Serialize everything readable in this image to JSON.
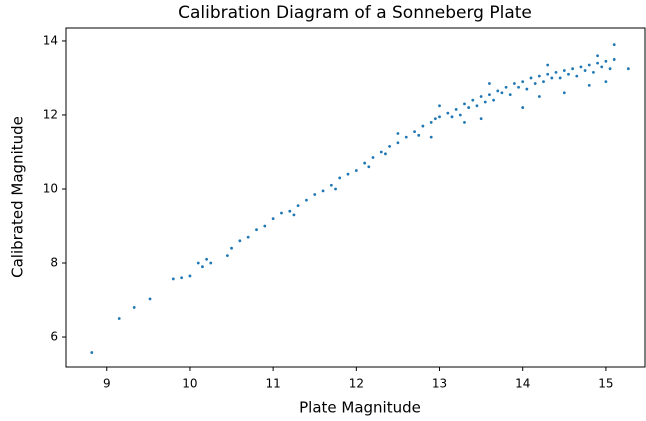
{
  "chart_data": {
    "type": "scatter",
    "title": "Calibration Diagram of a Sonneberg Plate",
    "x_label": "Plate Magnitude",
    "y_label": "Calibrated Magnitude",
    "color": "#1f77b4",
    "xlim": [
      8.51,
      15.47
    ],
    "xticks": [
      9,
      10,
      11,
      12,
      13,
      14,
      15
    ],
    "ylim": [
      5.19,
      14.35
    ],
    "yticks": [
      6,
      8,
      10,
      12,
      14
    ],
    "x": [
      8.82,
      9.15,
      9.33,
      9.52,
      9.8,
      9.9,
      10.0,
      10.1,
      10.15,
      10.2,
      10.25,
      10.45,
      10.5,
      10.6,
      10.7,
      10.8,
      10.9,
      11.0,
      11.1,
      11.2,
      11.3,
      11.4,
      11.5,
      11.6,
      11.7,
      11.8,
      11.9,
      12.0,
      12.1,
      12.2,
      12.3,
      12.4,
      12.5,
      12.6,
      12.7,
      12.8,
      12.9,
      13.0,
      13.1,
      13.2,
      13.3,
      13.4,
      13.5,
      13.6,
      13.7,
      13.8,
      13.9,
      14.0,
      14.1,
      14.2,
      14.3,
      14.4,
      14.5,
      14.6,
      14.7,
      14.8,
      14.9,
      15.0,
      15.1,
      13.5,
      14.0,
      14.5,
      15.0,
      15.27,
      15.1,
      13.3,
      12.9,
      14.8,
      14.2,
      13.6,
      14.3,
      14.9,
      13.0,
      12.5,
      13.25,
      13.45,
      13.65,
      13.85,
      14.05,
      14.25,
      14.45,
      14.65,
      14.85,
      15.05,
      12.75,
      12.95,
      13.15,
      13.35,
      13.55,
      13.75,
      13.95,
      14.15,
      14.35,
      14.55,
      14.75,
      14.95,
      12.15,
      12.35,
      11.75,
      11.25
    ],
    "y": [
      5.58,
      6.5,
      6.8,
      7.03,
      7.57,
      7.6,
      7.65,
      8.0,
      7.9,
      8.1,
      8.0,
      8.2,
      8.4,
      8.6,
      8.7,
      8.9,
      9.0,
      9.2,
      9.35,
      9.4,
      9.55,
      9.7,
      9.85,
      9.95,
      10.1,
      10.3,
      10.4,
      10.5,
      10.7,
      10.85,
      11.0,
      11.15,
      11.25,
      11.4,
      11.55,
      11.7,
      11.8,
      11.95,
      12.05,
      12.15,
      12.3,
      12.4,
      12.5,
      12.55,
      12.65,
      12.75,
      12.85,
      12.9,
      13.0,
      13.05,
      13.1,
      13.15,
      13.2,
      13.25,
      13.3,
      13.35,
      13.4,
      13.45,
      13.5,
      11.9,
      12.2,
      12.6,
      12.9,
      13.25,
      13.9,
      11.8,
      11.4,
      12.8,
      12.5,
      12.85,
      13.35,
      13.6,
      12.25,
      11.5,
      12.0,
      12.25,
      12.4,
      12.55,
      12.7,
      12.9,
      13.0,
      13.05,
      13.15,
      13.25,
      11.45,
      11.9,
      11.95,
      12.2,
      12.35,
      12.6,
      12.75,
      12.85,
      13.0,
      13.1,
      13.2,
      13.3,
      10.6,
      10.95,
      10.0,
      9.3
    ]
  }
}
